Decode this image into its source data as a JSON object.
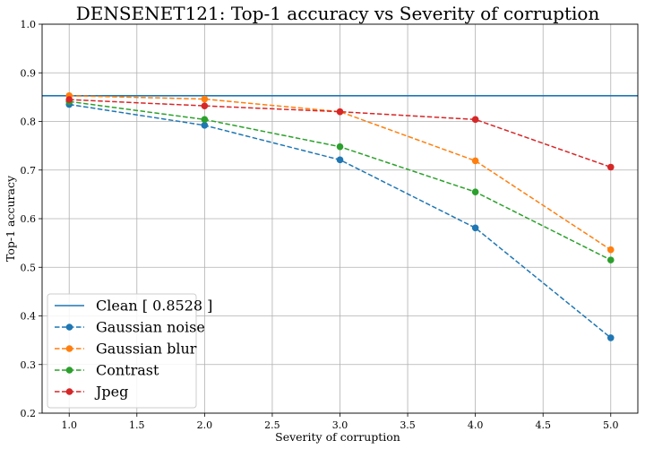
{
  "chart_data": {
    "type": "line",
    "title": "DENSENET121: Top-1 accuracy vs Severity of corruption",
    "xlabel": "Severity of corruption",
    "ylabel": "Top-1 accuracy",
    "xlim": [
      0.8,
      5.2
    ],
    "ylim": [
      0.2,
      1.0
    ],
    "x_ticks": [
      "1.0",
      "1.5",
      "2.0",
      "2.5",
      "3.0",
      "3.5",
      "4.0",
      "4.5",
      "5.0"
    ],
    "y_ticks": [
      "0.2",
      "0.3",
      "0.4",
      "0.5",
      "0.6",
      "0.7",
      "0.8",
      "0.9",
      "1.0"
    ],
    "grid": true,
    "legend_position": "lower-left",
    "reference_line": {
      "name": "Clean [ 0.8528 ]",
      "value": 0.8528,
      "color": "#1f77b4"
    },
    "x": [
      1,
      2,
      3,
      4,
      5
    ],
    "series": [
      {
        "name": "Gaussian noise",
        "color": "#1f77b4",
        "values": [
          0.835,
          0.792,
          0.721,
          0.581,
          0.355
        ]
      },
      {
        "name": "Gaussian blur",
        "color": "#ff7f0e",
        "values": [
          0.853,
          0.846,
          0.82,
          0.719,
          0.536
        ]
      },
      {
        "name": "Contrast",
        "color": "#2ca02c",
        "values": [
          0.841,
          0.804,
          0.748,
          0.655,
          0.515
        ]
      },
      {
        "name": "Jpeg",
        "color": "#d62728",
        "values": [
          0.845,
          0.832,
          0.82,
          0.804,
          0.706
        ]
      }
    ]
  }
}
